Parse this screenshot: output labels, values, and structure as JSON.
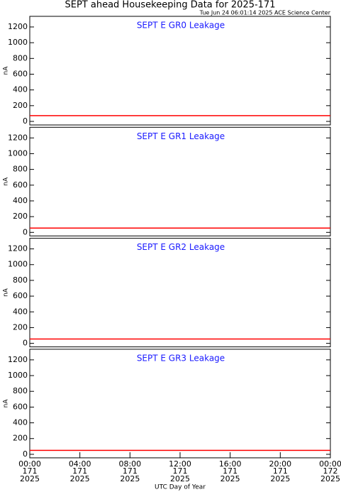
{
  "header": {
    "title": "SEPT ahead Housekeeping Data for 2025-171",
    "subtitle": "Tue Jun 24 06:01:14 2025 ACE Science Center"
  },
  "chart_data": [
    {
      "type": "line",
      "title": "SEPT E GR0 Leakage",
      "ylabel": "nA",
      "x": [
        0,
        24
      ],
      "xlim": [
        0,
        24
      ],
      "series": [
        {
          "color": "#ff0000",
          "values": [
            73,
            73
          ]
        }
      ],
      "ylim": [
        -45,
        1335
      ],
      "yticks": [
        0,
        200,
        400,
        600,
        800,
        1000,
        1200
      ]
    },
    {
      "type": "line",
      "title": "SEPT E GR1 Leakage",
      "ylabel": "nA",
      "x": [
        0,
        24
      ],
      "xlim": [
        0,
        24
      ],
      "series": [
        {
          "color": "#ff0000",
          "values": [
            55,
            55
          ]
        }
      ],
      "ylim": [
        -45,
        1335
      ],
      "yticks": [
        0,
        200,
        400,
        600,
        800,
        1000,
        1200
      ]
    },
    {
      "type": "line",
      "title": "SEPT E GR2 Leakage",
      "ylabel": "nA",
      "x": [
        0,
        24
      ],
      "xlim": [
        0,
        24
      ],
      "series": [
        {
          "color": "#ff0000",
          "values": [
            55,
            55
          ]
        }
      ],
      "ylim": [
        -45,
        1335
      ],
      "yticks": [
        0,
        200,
        400,
        600,
        800,
        1000,
        1200
      ]
    },
    {
      "type": "line",
      "title": "SEPT E GR3 Leakage",
      "ylabel": "nA",
      "x": [
        0,
        24
      ],
      "xlim": [
        0,
        24
      ],
      "series": [
        {
          "color": "#ff0000",
          "values": [
            50,
            50
          ]
        }
      ],
      "ylim": [
        -45,
        1335
      ],
      "yticks": [
        0,
        200,
        400,
        600,
        800,
        1000,
        1200
      ],
      "xlabel": "UTC Day of Year",
      "xticks": [
        {
          "value": 0,
          "label": "00:00",
          "day": "171",
          "year": "2025"
        },
        {
          "value": 4,
          "label": "04:00",
          "day": "171",
          "year": "2025"
        },
        {
          "value": 8,
          "label": "08:00",
          "day": "171",
          "year": "2025"
        },
        {
          "value": 12,
          "label": "12:00",
          "day": "171",
          "year": "2025"
        },
        {
          "value": 16,
          "label": "16:00",
          "day": "171",
          "year": "2025"
        },
        {
          "value": 20,
          "label": "20:00",
          "day": "171",
          "year": "2025"
        },
        {
          "value": 24,
          "label": "00:00",
          "day": "172",
          "year": "2025"
        }
      ]
    }
  ]
}
